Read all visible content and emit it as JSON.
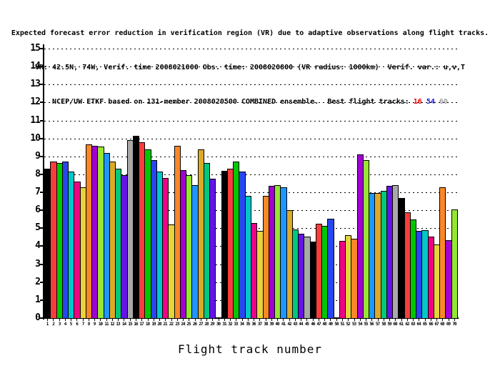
{
  "header": {
    "line1": "Expected forecast error reduction in verification region (VR) due to adaptive observations along flight tracks.",
    "line2": "VR: 42.5N, 74W, Verif. time 2008021000 Obs. time: 2008020800 (VR radius: 1000km)  Verif. var.: u,v,T",
    "line3_prefix": "NCEP/UW ETKF based on 131-member 2008020500 COMBINED ensemble.  Best flight tracks:",
    "best_flight_tracks": [
      {
        "track": "16",
        "color": "#f00000"
      },
      {
        "track": "54",
        "color": "#1414f0"
      },
      {
        "track": "60",
        "color": "#a0a0a0"
      }
    ]
  },
  "chart_data": {
    "type": "bar",
    "title": "Expected forecast error reduction in verification region (VR) due to adaptive observations along flight tracks.",
    "subtitle1": "VR: 42.5N, 74W, Verif. time 2008021000 Obs. time: 2008020800 (VR radius: 1000km)  Verif. var.: u,v,T",
    "subtitle2": "NCEP/UW ETKF based on 131-member 2008020500 COMBINED ensemble.  Best flight tracks: 16 54 60",
    "xlabel": "Flight track number",
    "ylabel": "",
    "ylim": [
      0,
      15
    ],
    "ytick_step": 1,
    "yticks": [
      0,
      1,
      2,
      3,
      4,
      5,
      6,
      7,
      8,
      9,
      10,
      11,
      12,
      13,
      14,
      15
    ],
    "grid": "horizontal-dotted",
    "legend": "none",
    "best_tracks": [
      16,
      54,
      60
    ],
    "missing_tracks": [
      30,
      50
    ],
    "categories": [
      1,
      2,
      3,
      4,
      5,
      6,
      7,
      8,
      9,
      10,
      11,
      12,
      13,
      14,
      15,
      16,
      17,
      18,
      19,
      20,
      21,
      22,
      23,
      24,
      25,
      26,
      27,
      28,
      29,
      30,
      31,
      32,
      33,
      34,
      35,
      36,
      37,
      38,
      39,
      40,
      41,
      42,
      43,
      44,
      45,
      46,
      47,
      48,
      49,
      50,
      51,
      52,
      53,
      54,
      55,
      56,
      57,
      58,
      59,
      60,
      61,
      62,
      63,
      64,
      65,
      66,
      67,
      68,
      69,
      70
    ],
    "values": [
      8.3,
      8.7,
      8.65,
      8.7,
      8.15,
      7.6,
      7.3,
      9.65,
      9.6,
      9.55,
      9.2,
      8.7,
      8.3,
      7.95,
      9.9,
      10.15,
      9.8,
      9.4,
      8.8,
      8.15,
      7.8,
      5.2,
      9.6,
      8.25,
      7.95,
      7.4,
      9.4,
      8.65,
      7.75,
      0,
      8.2,
      8.3,
      8.7,
      8.15,
      6.8,
      5.3,
      4.85,
      6.8,
      7.35,
      7.4,
      7.3,
      6.0,
      4.95,
      4.7,
      4.55,
      4.25,
      5.25,
      5.15,
      5.55,
      0,
      4.3,
      4.6,
      4.4,
      9.1,
      8.8,
      6.95,
      6.95,
      7.1,
      7.35,
      7.4,
      6.7,
      5.9,
      5.5,
      4.85,
      4.9,
      4.55,
      4.1,
      7.3,
      4.35,
      6.05
    ],
    "color_cycle": [
      "#000000",
      "#f93d3d",
      "#00c800",
      "#2846f0",
      "#00c8c8",
      "#f00087",
      "#e6d43c",
      "#fa8728",
      "#a000d2",
      "#96e632",
      "#1e96ff",
      "#dcaa28",
      "#00c87d",
      "#6414e6",
      "#a9a9a9"
    ]
  }
}
